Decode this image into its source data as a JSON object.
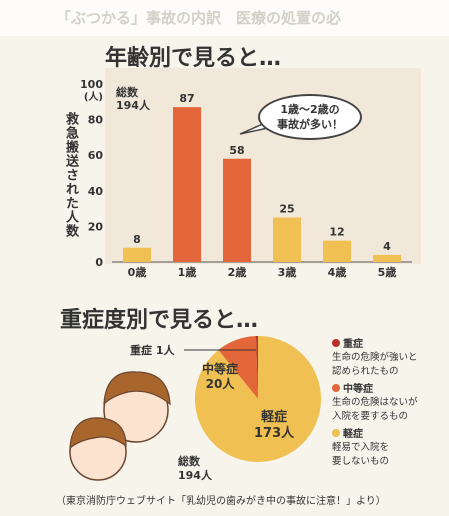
{
  "ghost_header": "「ぶつかる」事故の内訳　医療の処置の必",
  "bar_section": {
    "title": "年齢別で見ると…"
  },
  "pie_section": {
    "title": "重症度別で見ると…"
  },
  "chart_data": [
    {
      "type": "bar",
      "title": "年齢別で見ると…",
      "ylabel": "救急搬送された人数",
      "yunit": "(人)",
      "ylim": [
        0,
        100
      ],
      "yticks": [
        "0",
        "20",
        "40",
        "60",
        "80",
        "100"
      ],
      "categories": [
        "0歳",
        "1歳",
        "2歳",
        "3歳",
        "4歳",
        "5歳"
      ],
      "values": [
        8,
        87,
        58,
        25,
        12,
        4
      ],
      "value_labels": [
        "8",
        "87",
        "58",
        "25",
        "12",
        "4"
      ],
      "colors": [
        "#f0c052",
        "#e2663a",
        "#e2663a",
        "#f0c052",
        "#f0c052",
        "#f0c052"
      ],
      "total": {
        "line1": "総数",
        "line2": "194人"
      },
      "callout": {
        "line1": "1歳～2歳の",
        "line2": "事故が多い！"
      },
      "grid": false
    },
    {
      "type": "pie",
      "title": "重症度別で見ると…",
      "slices": [
        {
          "name": "重症",
          "value": 1,
          "value_label": "1人",
          "color": "#b7322b"
        },
        {
          "name": "中等症",
          "value": 20,
          "value_label": "20人",
          "color": "#e2663a"
        },
        {
          "name": "軽症",
          "value": 173,
          "value_label": "173人",
          "color": "#f0c052"
        }
      ],
      "total": {
        "line1": "総数",
        "line2": "194人"
      },
      "legend": [
        {
          "name": "重症",
          "desc1": "生命の危険が強いと",
          "desc2": "認められたもの",
          "color": "#b7322b"
        },
        {
          "name": "中等症",
          "desc1": "生命の危険はないが",
          "desc2": "入院を要するもの",
          "color": "#e2663a"
        },
        {
          "name": "軽症",
          "desc1": "軽易で入院を",
          "desc2": "要しないもの",
          "color": "#f0c052"
        }
      ],
      "legend_position": "right"
    }
  ],
  "source": "（東京消防庁ウェブサイト「乳幼児の歯みがき中の事故に注意！」より）"
}
